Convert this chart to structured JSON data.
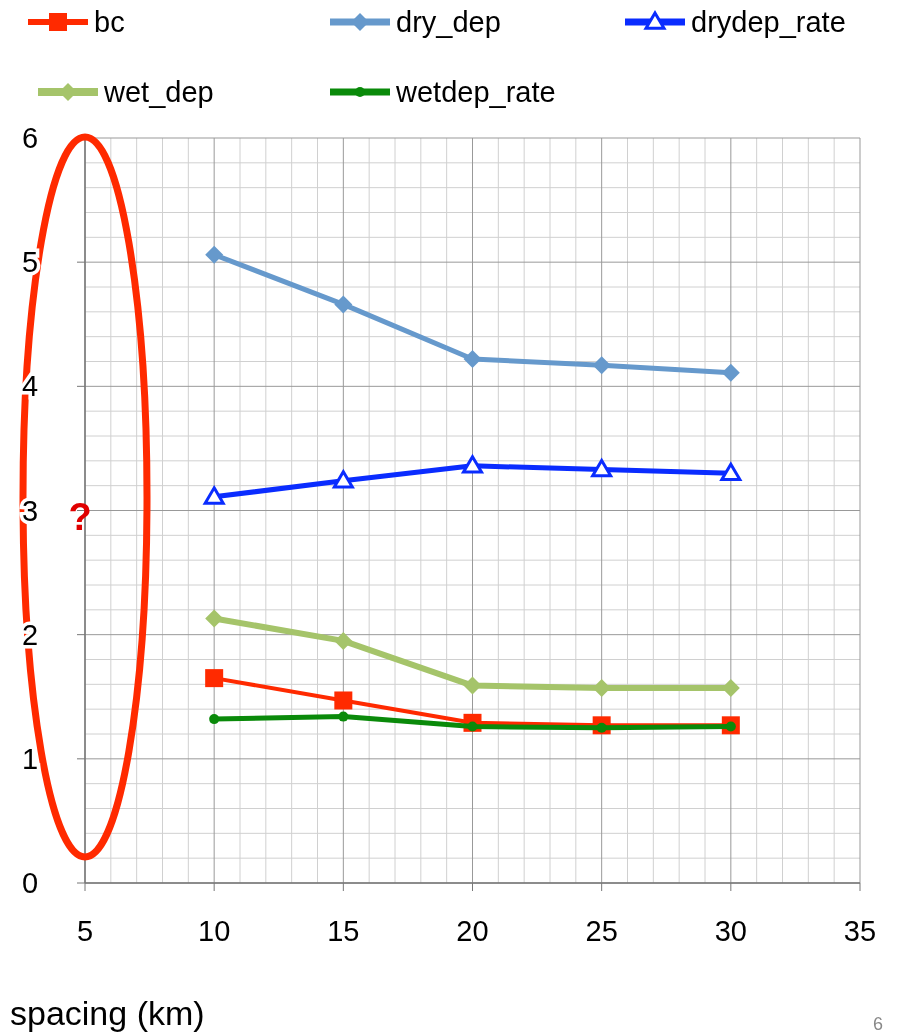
{
  "chart_data": {
    "type": "line",
    "x": [
      10,
      15,
      20,
      25,
      30
    ],
    "series": [
      {
        "name": "bc",
        "color": "#ff2a00",
        "marker": "square",
        "values": [
          1.65,
          1.47,
          1.29,
          1.27,
          1.27
        ]
      },
      {
        "name": "dry_dep",
        "color": "#6699cc",
        "marker": "diamond",
        "values": [
          5.06,
          4.66,
          4.22,
          4.17,
          4.11
        ]
      },
      {
        "name": "drydep_rate",
        "color": "#0a2cff",
        "marker": "triangle",
        "values": [
          3.11,
          3.24,
          3.36,
          3.33,
          3.3
        ]
      },
      {
        "name": "wet_dep",
        "color": "#a5c46a",
        "marker": "diamond",
        "values": [
          2.13,
          1.95,
          1.59,
          1.57,
          1.57
        ]
      },
      {
        "name": "wetdep_rate",
        "color": "#0a8a0a",
        "marker": "circle",
        "values": [
          1.32,
          1.34,
          1.26,
          1.25,
          1.26
        ]
      }
    ],
    "xlim": [
      5,
      35
    ],
    "xticks": [
      5,
      10,
      15,
      20,
      25,
      30,
      35
    ],
    "ylim": [
      0,
      6
    ],
    "yticks": [
      0,
      1,
      2,
      3,
      4,
      5,
      6
    ],
    "xlabel": "spacing (km)",
    "annotations": [
      "?",
      "6"
    ],
    "grid": true,
    "legend": "top",
    "line_style": "solid"
  }
}
